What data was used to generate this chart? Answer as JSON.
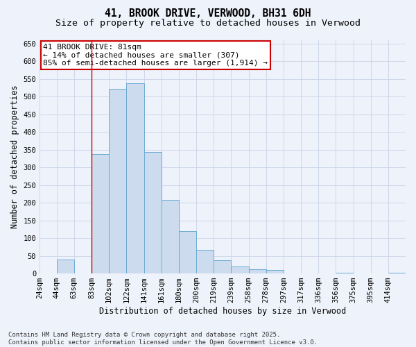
{
  "title_line1": "41, BROOK DRIVE, VERWOOD, BH31 6DH",
  "title_line2": "Size of property relative to detached houses in Verwood",
  "xlabel": "Distribution of detached houses by size in Verwood",
  "ylabel": "Number of detached properties",
  "bar_color": "#ccdcee",
  "bar_edge_color": "#6aaad4",
  "bg_color": "#eef2fa",
  "grid_color": "#c8d4e8",
  "annotation_text": "41 BROOK DRIVE: 81sqm\n← 14% of detached houses are smaller (307)\n85% of semi-detached houses are larger (1,914) →",
  "annotation_box_color": "white",
  "annotation_box_edge": "#cc0000",
  "vline_color": "#cc0000",
  "categories": [
    "24sqm",
    "44sqm",
    "63sqm",
    "83sqm",
    "102sqm",
    "122sqm",
    "141sqm",
    "161sqm",
    "180sqm",
    "200sqm",
    "219sqm",
    "239sqm",
    "258sqm",
    "278sqm",
    "297sqm",
    "317sqm",
    "336sqm",
    "356sqm",
    "375sqm",
    "395sqm",
    "414sqm"
  ],
  "bin_edges": [
    14.5,
    33.5,
    53.0,
    72.5,
    92.0,
    111.5,
    131.0,
    150.5,
    170.0,
    189.5,
    209.0,
    228.5,
    248.0,
    267.5,
    287.0,
    306.5,
    326.0,
    345.5,
    365.0,
    384.5,
    404.0,
    423.5
  ],
  "values": [
    0,
    40,
    0,
    337,
    522,
    538,
    344,
    208,
    119,
    66,
    37,
    19,
    12,
    10,
    0,
    0,
    0,
    3,
    0,
    0,
    3
  ],
  "vline_x_bin": 3,
  "ylim": [
    0,
    660
  ],
  "yticks": [
    0,
    50,
    100,
    150,
    200,
    250,
    300,
    350,
    400,
    450,
    500,
    550,
    600,
    650
  ],
  "footer_text": "Contains HM Land Registry data © Crown copyright and database right 2025.\nContains public sector information licensed under the Open Government Licence v3.0.",
  "title_fontsize": 10.5,
  "subtitle_fontsize": 9.5,
  "axis_label_fontsize": 8.5,
  "tick_fontsize": 7.5,
  "footer_fontsize": 6.5,
  "annot_fontsize": 8
}
